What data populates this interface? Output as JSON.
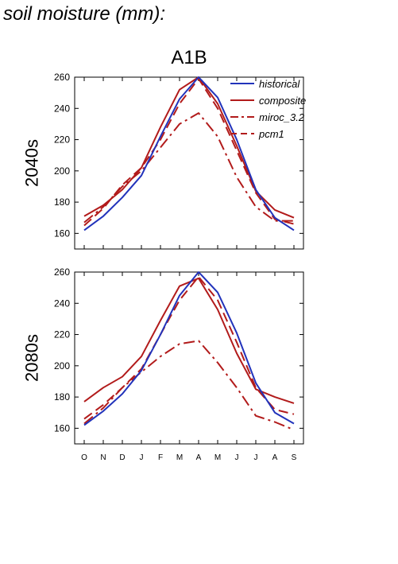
{
  "figure_title": "soil moisture (mm):",
  "chart_data": {
    "type": "line",
    "column_title": "A1B",
    "months": [
      "O",
      "N",
      "D",
      "J",
      "F",
      "M",
      "A",
      "M",
      "J",
      "J",
      "A",
      "S"
    ],
    "ylim": [
      150,
      260
    ],
    "yticks": [
      160,
      180,
      200,
      220,
      240,
      260
    ],
    "legend": {
      "placement": "top-right",
      "entries": [
        {
          "name": "historical",
          "color": "#2233bb",
          "dash": "solid"
        },
        {
          "name": "composite",
          "color": "#b21b1b",
          "dash": "solid"
        },
        {
          "name": "miroc_3.2",
          "color": "#b21b1b",
          "dash": "dashdot"
        },
        {
          "name": "pcm1",
          "color": "#b21b1b",
          "dash": "dashed"
        }
      ]
    },
    "panels": [
      {
        "row_label": "2040s",
        "series": [
          {
            "name": "historical",
            "values": [
              162,
              171,
              183,
              197,
              222,
              246,
              260,
              247,
              220,
              188,
              170,
              162
            ]
          },
          {
            "name": "composite",
            "values": [
              171,
              178,
              188,
              202,
              228,
              252,
              260,
              243,
              216,
              187,
              175,
              170
            ]
          },
          {
            "name": "miroc_3.2",
            "values": [
              167,
              177,
              190,
              200,
              215,
              230,
              237,
              222,
              196,
              177,
              168,
              168
            ]
          },
          {
            "name": "pcm1",
            "values": [
              165,
              176,
              191,
              202,
              220,
              243,
              259,
              240,
              213,
              186,
              169,
              166
            ]
          }
        ]
      },
      {
        "row_label": "2080s",
        "series": [
          {
            "name": "historical",
            "values": [
              162,
              171,
              182,
              197,
              220,
              245,
              260,
              247,
              221,
              189,
              170,
              163
            ]
          },
          {
            "name": "composite",
            "values": [
              177,
              186,
              193,
              206,
              229,
              251,
              256,
              236,
              208,
              185,
              180,
              176
            ]
          },
          {
            "name": "miroc_3.2",
            "values": [
              163,
              173,
              186,
              196,
              206,
              214,
              216,
              202,
              186,
              168,
              164,
              159
            ]
          },
          {
            "name": "pcm1",
            "values": [
              166,
              175,
              186,
              198,
              220,
              242,
              257,
              242,
              215,
              186,
              172,
              169
            ]
          }
        ]
      }
    ]
  }
}
